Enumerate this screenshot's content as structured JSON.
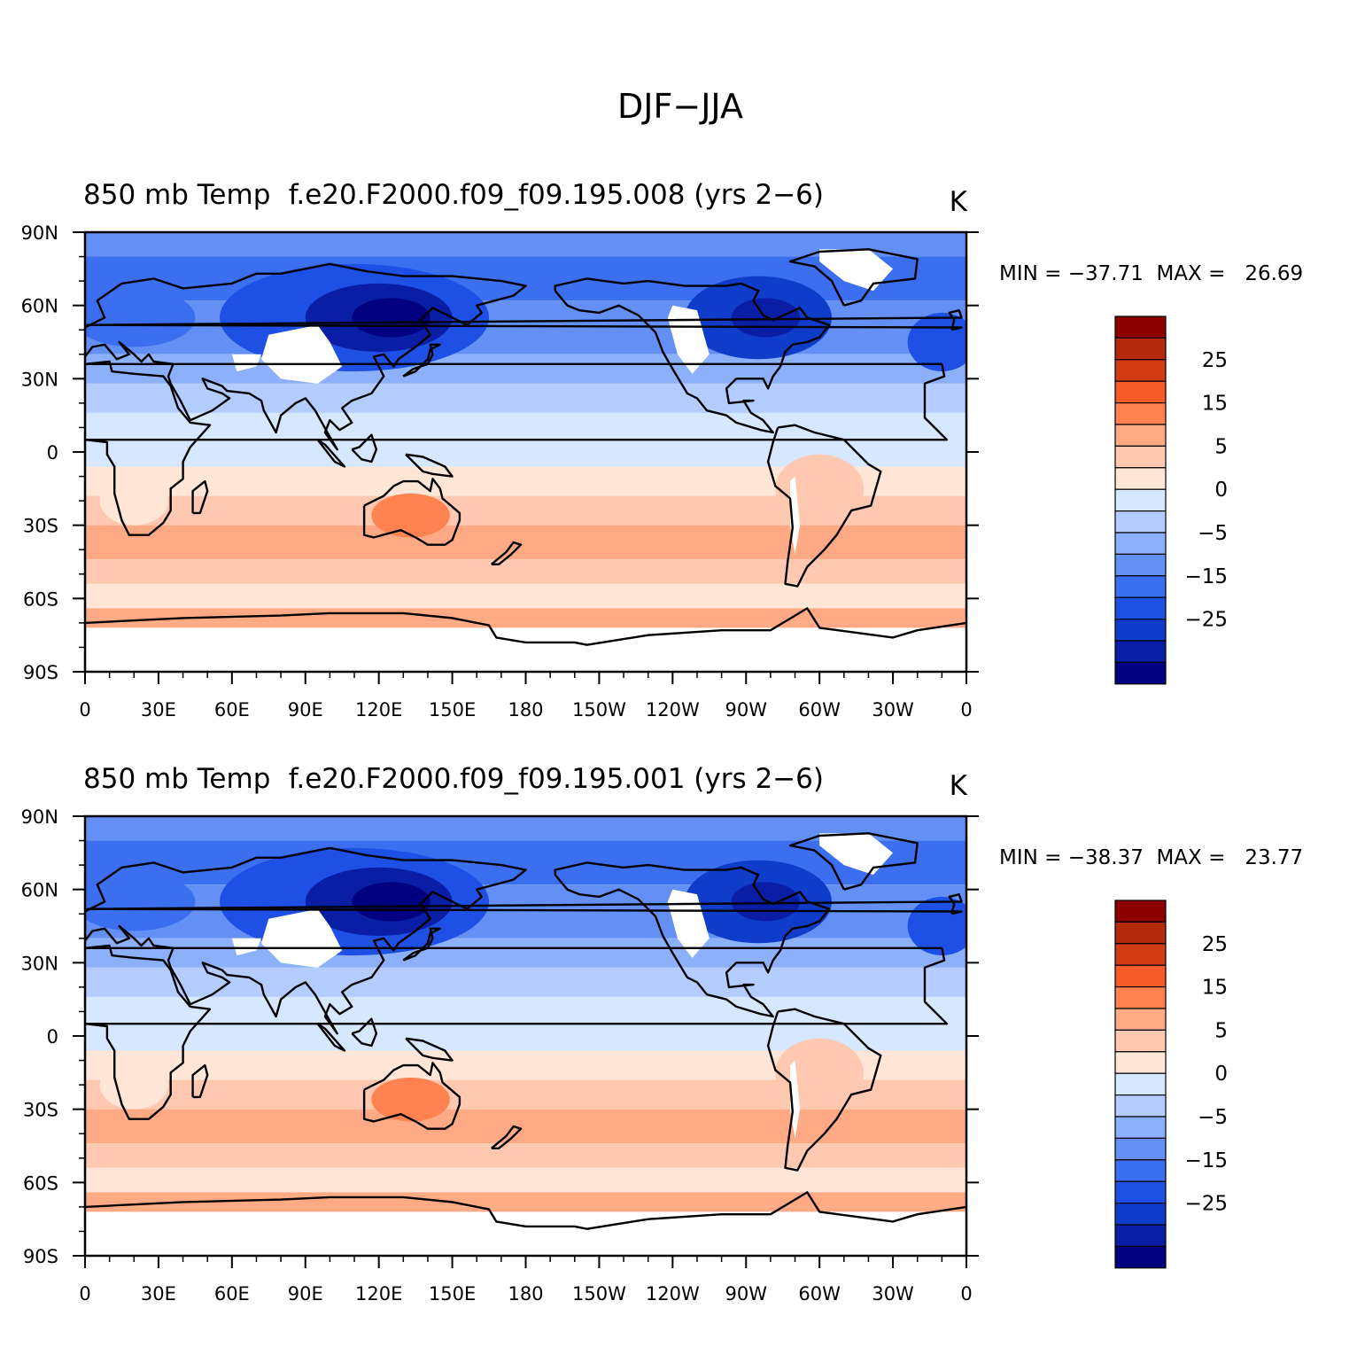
{
  "figure": {
    "title": "DJF−JJA"
  },
  "colors": {
    "levels": [
      "#000080",
      "#0a1ea5",
      "#0f3cc8",
      "#1e50e6",
      "#3c6ef0",
      "#6490f5",
      "#8cb0fa",
      "#b4ccff",
      "#d6e8ff",
      "#ffe6d6",
      "#ffc8b0",
      "#ffaa84",
      "#ff8250",
      "#f55a28",
      "#d23c14",
      "#b42a0a",
      "#8c0000"
    ],
    "land_fill_missing": "#ffffff",
    "coast": "#000000"
  },
  "panels": [
    {
      "left_title": "850 mb Temp",
      "center_title": "f.e20.F2000.f09_f09.195.008 (yrs 2−6)",
      "units": "K",
      "min_max": "MIN = −37.71  MAX =   26.69"
    },
    {
      "left_title": "850 mb Temp",
      "center_title": "f.e20.F2000.f09_f09.195.001 (yrs 2−6)",
      "units": "K",
      "min_max": "MIN = −38.37  MAX =   23.77"
    }
  ],
  "axes": {
    "lat_labels": [
      "90N",
      "60N",
      "30N",
      "0",
      "30S",
      "60S",
      "90S"
    ],
    "lon_labels": [
      "0",
      "30E",
      "60E",
      "90E",
      "120E",
      "150E",
      "180",
      "150W",
      "120W",
      "90W",
      "60W",
      "30W",
      "0"
    ]
  },
  "colorbar": {
    "labels": [
      "25",
      "15",
      "5",
      "0",
      "−5",
      "−15",
      "−25"
    ]
  }
}
